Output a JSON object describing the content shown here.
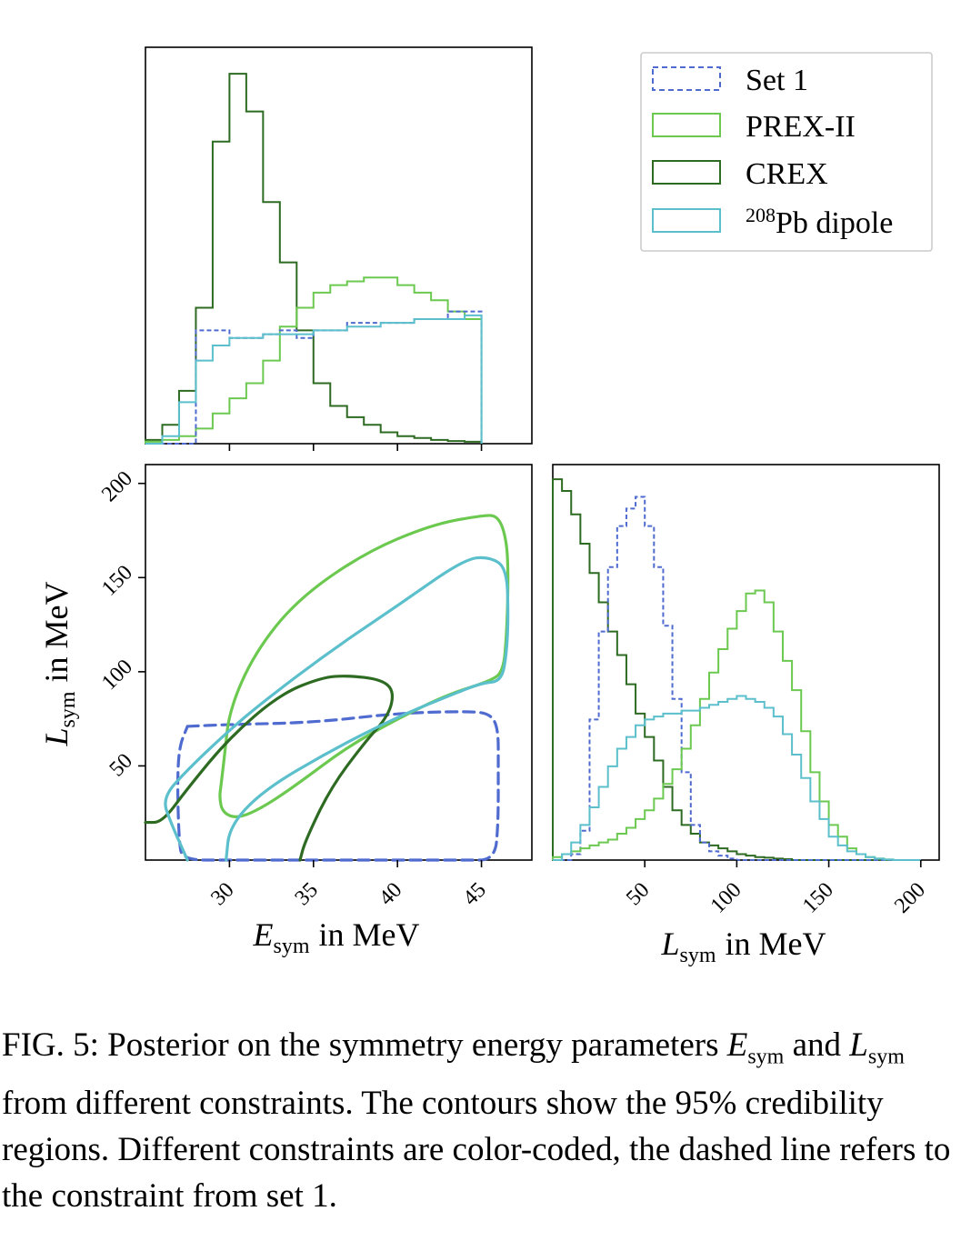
{
  "legend": {
    "entries": [
      {
        "key": "set1",
        "label": "Set 1",
        "color": "#4f6bd0",
        "dashed": true
      },
      {
        "key": "prex",
        "label": "PREX-II",
        "color": "#6cc950",
        "dashed": false
      },
      {
        "key": "crex",
        "label": "CREX",
        "color": "#2e6b22",
        "dashed": false
      },
      {
        "key": "pb",
        "label_sup": "208",
        "label": "Pb dipole",
        "color": "#5bbfcc",
        "dashed": false
      }
    ]
  },
  "caption": {
    "prefix": "FIG. 5: Posterior on the symmetry energy parameters",
    "e_sym": "E",
    "sub": "sym",
    "and": "and",
    "l_sym": "L",
    "rest": "from different constraints. The contours show the 95% credibility regions. Different constraints are color-coded, the dashed line refers to the constraint from set 1."
  },
  "chart_data": [
    {
      "type": "histogram",
      "panel": "E_sym marginal",
      "xlim": [
        25,
        48
      ],
      "x_ticks": [
        30,
        35,
        40,
        45
      ],
      "bin_edges": [
        25,
        26,
        27,
        28,
        29,
        30,
        31,
        32,
        33,
        34,
        35,
        36,
        37,
        38,
        39,
        40,
        41,
        42,
        43,
        44,
        45
      ],
      "series": [
        {
          "name": "CREX",
          "values": [
            1,
            5,
            14,
            36,
            80,
            98,
            88,
            64,
            48,
            30,
            16,
            10,
            7,
            5,
            3,
            2,
            1.5,
            1,
            0.7,
            0.5
          ]
        },
        {
          "name": "PREX-II",
          "values": [
            0.5,
            1,
            2,
            4,
            8,
            12,
            16,
            22,
            31,
            36,
            40,
            42,
            43,
            44,
            44,
            42,
            40,
            38,
            35,
            33
          ]
        },
        {
          "name": "Set 1",
          "values": [
            0,
            0,
            0,
            30,
            30,
            28,
            28,
            29,
            30,
            28,
            30,
            30,
            32,
            32,
            32,
            32,
            33,
            33,
            35,
            35
          ]
        },
        {
          "name": "208Pb dipole",
          "values": [
            0,
            2,
            11,
            22,
            26,
            28,
            28,
            29,
            29,
            29,
            30,
            30,
            31,
            31,
            32,
            32,
            33,
            33,
            33,
            34
          ]
        }
      ]
    },
    {
      "type": "contour",
      "panel": "joint E_sym - L_sym",
      "xlabel_var": "E",
      "xlabel_sub": "sym",
      "xlabel_unit": "in MeV",
      "ylabel_var": "L",
      "ylabel_sub": "sym",
      "ylabel_unit": "in MeV",
      "xlim": [
        25,
        48
      ],
      "ylim": [
        0,
        210
      ],
      "x_ticks": [
        30,
        35,
        40,
        45
      ],
      "y_ticks": [
        50,
        100,
        150,
        200
      ],
      "series": [
        {
          "name": "Set 1",
          "points": [
            [
              27.5,
              71
            ],
            [
              30,
              72
            ],
            [
              35,
              73
            ],
            [
              40,
              78
            ],
            [
              44,
              79
            ],
            [
              45.5,
              78
            ],
            [
              46,
              70
            ],
            [
              46,
              50
            ],
            [
              46,
              20
            ],
            [
              45.8,
              0
            ],
            [
              44,
              0
            ],
            [
              40,
              0
            ],
            [
              35,
              0
            ],
            [
              30,
              0
            ],
            [
              27.2,
              0
            ],
            [
              27,
              10
            ],
            [
              26.9,
              40
            ],
            [
              27,
              60
            ],
            [
              27.5,
              71
            ]
          ]
        },
        {
          "name": "PREX-II",
          "points": [
            [
              29.5,
              40
            ],
            [
              29.7,
              55
            ],
            [
              30,
              80
            ],
            [
              31.5,
              110
            ],
            [
              34,
              138
            ],
            [
              38,
              163
            ],
            [
              42,
              178
            ],
            [
              45,
              183
            ],
            [
              46,
              183
            ],
            [
              46.5,
              170
            ],
            [
              46.6,
              150
            ],
            [
              46.5,
              120
            ],
            [
              46.3,
              100
            ],
            [
              45.5,
              95
            ],
            [
              43,
              88
            ],
            [
              40,
              75
            ],
            [
              37,
              60
            ],
            [
              34,
              40
            ],
            [
              32,
              28
            ],
            [
              30.5,
              22
            ],
            [
              29.6,
              25
            ],
            [
              29.4,
              33
            ],
            [
              29.5,
              40
            ]
          ]
        },
        {
          "name": "CREX",
          "points": [
            [
              25,
              20
            ],
            [
              26,
              20
            ],
            [
              27.5,
              38
            ],
            [
              30,
              65
            ],
            [
              33,
              88
            ],
            [
              35.5,
              97
            ],
            [
              37,
              98
            ],
            [
              39,
              96
            ],
            [
              39.8,
              90
            ],
            [
              39.5,
              77
            ],
            [
              38,
              62
            ],
            [
              36,
              38
            ],
            [
              34.5,
              10
            ],
            [
              34.2,
              0
            ]
          ]
        },
        {
          "name": "208Pb dipole",
          "points": [
            [
              27.5,
              0
            ],
            [
              26.5,
              20
            ],
            [
              26,
              33
            ],
            [
              27.5,
              48
            ],
            [
              30,
              69
            ],
            [
              32,
              84
            ],
            [
              36,
              111
            ],
            [
              40,
              135
            ],
            [
              44,
              160
            ],
            [
              45.5,
              161
            ],
            [
              46.5,
              155
            ],
            [
              46.6,
              130
            ],
            [
              46.5,
              110
            ],
            [
              46.2,
              95
            ],
            [
              45,
              94
            ],
            [
              43,
              87
            ],
            [
              40,
              76
            ],
            [
              36,
              58
            ],
            [
              32,
              37
            ],
            [
              30,
              18
            ],
            [
              29.8,
              0
            ]
          ]
        }
      ]
    },
    {
      "type": "histogram",
      "panel": "L_sym marginal",
      "xlabel_var": "L",
      "xlabel_sub": "sym",
      "xlabel_unit": "in MeV",
      "xlim": [
        0,
        210
      ],
      "x_ticks": [
        50,
        100,
        150,
        200
      ],
      "bin_edges": [
        0,
        5,
        10,
        15,
        20,
        25,
        30,
        35,
        40,
        45,
        50,
        55,
        60,
        65,
        70,
        75,
        80,
        85,
        90,
        95,
        100,
        105,
        110,
        115,
        120,
        125,
        130,
        135,
        140,
        145,
        150,
        155,
        160,
        165,
        170,
        175,
        180,
        185,
        190,
        195,
        200
      ],
      "series": [
        {
          "name": "CREX",
          "values": [
            130,
            126,
            118,
            108,
            98,
            88,
            78,
            70,
            60,
            50,
            42,
            34,
            25,
            17,
            12,
            9,
            6,
            5,
            4,
            3,
            2,
            1.5,
            1,
            0.8,
            0.5,
            0.3,
            0,
            0,
            0,
            0,
            0,
            0,
            0,
            0,
            0,
            0,
            0,
            0,
            0,
            0
          ]
        },
        {
          "name": "Set 1",
          "values": [
            0,
            0,
            2,
            10,
            48,
            78,
            100,
            114,
            120,
            124,
            114,
            100,
            80,
            55,
            30,
            12,
            6,
            3,
            1.5,
            0.5,
            0,
            0,
            0,
            0,
            0,
            0,
            0,
            0,
            0,
            0,
            0,
            0,
            0,
            0,
            0,
            0,
            0,
            0,
            0,
            0
          ]
        },
        {
          "name": "PREX-II",
          "values": [
            1,
            2,
            3,
            4,
            5,
            6,
            7,
            9,
            11,
            14,
            17,
            21,
            26,
            31,
            38,
            46,
            55,
            64,
            72,
            79,
            85,
            91,
            92,
            88,
            78,
            68,
            58,
            44,
            30,
            20,
            12,
            8,
            4,
            2,
            1,
            0.5,
            0.2,
            0,
            0,
            0
          ]
        },
        {
          "name": "208Pb dipole",
          "values": [
            0,
            2,
            6,
            12,
            18,
            25,
            32,
            38,
            42,
            46,
            48,
            49,
            50,
            50,
            51,
            51,
            52,
            53,
            54,
            55,
            56,
            55,
            54,
            52,
            49,
            43,
            36,
            28,
            20,
            14,
            8,
            5,
            3,
            2,
            1,
            0.5,
            0.2,
            0,
            0,
            0
          ]
        }
      ]
    }
  ]
}
